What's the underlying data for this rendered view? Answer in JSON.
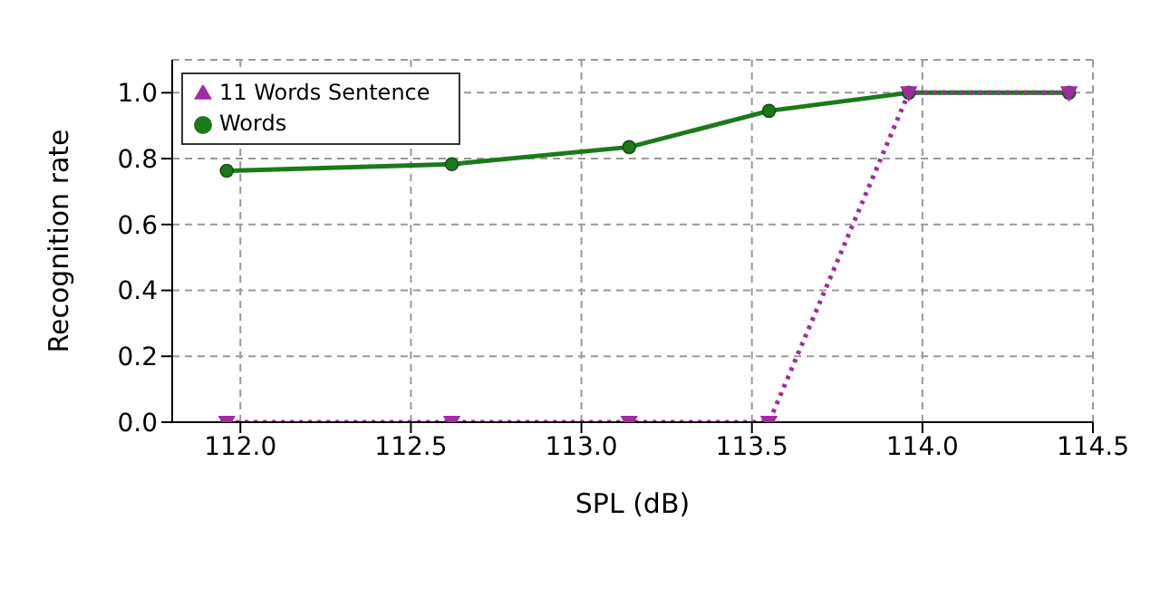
{
  "chart_data": {
    "type": "line",
    "xlabel": "SPL (dB)",
    "ylabel": "Recognition rate",
    "xlim": [
      111.8,
      114.5
    ],
    "xticks": [
      {
        "value": 112,
        "label": "112.0"
      },
      {
        "value": 112.5,
        "label": "112.5"
      },
      {
        "value": 113,
        "label": "113.0"
      },
      {
        "value": 113.5,
        "label": "113.5"
      },
      {
        "value": 114,
        "label": "114.0"
      },
      {
        "value": 114.5,
        "label": "114.5"
      }
    ],
    "ylim": [
      0,
      1.1
    ],
    "yticks": [
      {
        "value": 0,
        "label": "0.0"
      },
      {
        "value": 0.2,
        "label": "0.2"
      },
      {
        "value": 0.4,
        "label": "0.4"
      },
      {
        "value": 0.6,
        "label": "0.6"
      },
      {
        "value": 0.8,
        "label": "0.8"
      },
      {
        "value": 1,
        "label": "1.0"
      }
    ],
    "grid": true,
    "legend": "top left",
    "x": [
      111.96,
      112.62,
      113.14,
      113.55,
      113.96,
      114.43
    ],
    "series": [
      {
        "name": "11 Words Sentence",
        "color": "#a02ca0",
        "values": [
          0,
          0,
          0,
          0,
          1,
          1
        ],
        "marker": "triangle",
        "line_style": "dotted"
      },
      {
        "name": "Words",
        "color": "#1a7a1a",
        "values": [
          0.763,
          0.783,
          0.835,
          0.945,
          1,
          1
        ],
        "marker": "circle",
        "line_style": "solid"
      }
    ]
  }
}
